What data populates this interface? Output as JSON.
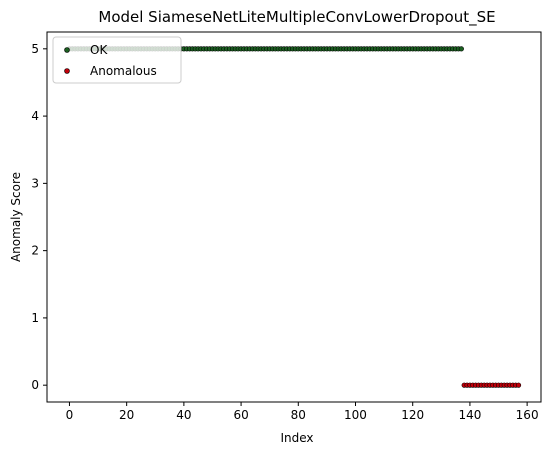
{
  "chart_data": {
    "type": "scatter",
    "title": "Model SiameseNetLiteMultipleConvLowerDropout_SE",
    "xlabel": "Index",
    "ylabel": "Anomaly Score",
    "xlim": [
      -7.85,
      164.85
    ],
    "ylim": [
      -0.25,
      5.25
    ],
    "xticks": [
      0,
      20,
      40,
      60,
      80,
      100,
      120,
      140,
      160
    ],
    "yticks": [
      0,
      1,
      2,
      3,
      4,
      5
    ],
    "grid": false,
    "legend_position": "upper-left",
    "series": [
      {
        "name": "OK",
        "color": "#1b5e20",
        "x_range": [
          0,
          137
        ],
        "y": 5
      },
      {
        "name": "Anomalous",
        "color": "#c0000a",
        "x_range": [
          138,
          157
        ],
        "y": 0
      }
    ]
  }
}
